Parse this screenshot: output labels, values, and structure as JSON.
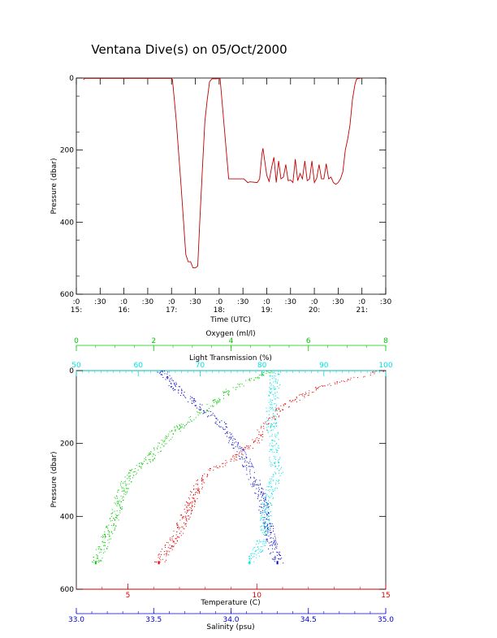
{
  "colors": {
    "axis": "#000000",
    "pressure_trace": "#c00000",
    "temperature": "#e00000",
    "salinity": "#0000cc",
    "oxygen": "#00cc00",
    "light_transmission": "#00e0e0"
  },
  "chart_data": [
    {
      "type": "line",
      "title": "Ventana Dive(s) on 05/Oct/2000",
      "xlabel": "Time (UTC)",
      "ylabel": "Pressure (dbar)",
      "x_ticks": [
        {
          "top": ":0",
          "bottom": "15:"
        },
        {
          "top": ":30",
          "bottom": ""
        },
        {
          "top": ":0",
          "bottom": "16:"
        },
        {
          "top": ":30",
          "bottom": ""
        },
        {
          "top": ":0",
          "bottom": "17:"
        },
        {
          "top": ":30",
          "bottom": ""
        },
        {
          "top": ":0",
          "bottom": "18:"
        },
        {
          "top": ":30",
          "bottom": ""
        },
        {
          "top": ":0",
          "bottom": "19:"
        },
        {
          "top": ":30",
          "bottom": ""
        },
        {
          "top": ":0",
          "bottom": "20:"
        },
        {
          "top": ":30",
          "bottom": ""
        },
        {
          "top": ":0",
          "bottom": "21:"
        },
        {
          "top": ":30",
          "bottom": ""
        }
      ],
      "xlim_hours": [
        15.0,
        21.5
      ],
      "y_ticks": [
        "0",
        "200",
        "400",
        "600"
      ],
      "ylim": [
        600,
        0
      ],
      "series": [
        {
          "x": [
            15.15,
            15.16,
            15.18,
            15.5,
            16.0,
            16.5,
            16.9,
            17.0,
            17.02,
            17.1,
            17.2,
            17.3,
            17.35,
            17.4,
            17.45,
            17.5,
            17.55,
            17.6,
            17.65,
            17.7,
            17.75,
            17.8,
            17.85,
            17.9,
            17.95,
            18.0,
            18.02,
            18.2,
            18.5,
            18.52,
            18.6,
            18.65,
            18.8,
            18.85,
            18.9,
            18.92,
            19.0,
            19.05,
            19.1,
            19.15,
            19.2,
            19.25,
            19.3,
            19.35,
            19.4,
            19.45,
            19.5,
            19.55,
            19.6,
            19.65,
            19.7,
            19.75,
            19.8,
            19.85,
            19.9,
            19.95,
            20.0,
            20.05,
            20.1,
            20.15,
            20.2,
            20.25,
            20.3,
            20.35,
            20.4,
            20.45,
            20.5,
            20.55,
            20.6,
            20.65,
            20.7,
            20.75,
            20.8,
            20.85,
            20.88,
            20.9,
            20.95,
            21.0
          ],
          "y": [
            5,
            3,
            1,
            1,
            1,
            1,
            1,
            1,
            5,
            120,
            300,
            490,
            510,
            510,
            527,
            527,
            522,
            380,
            250,
            120,
            60,
            10,
            2,
            2,
            2,
            1,
            1,
            280,
            280,
            280,
            290,
            288,
            290,
            280,
            210,
            195,
            270,
            287,
            250,
            220,
            290,
            230,
            280,
            275,
            240,
            285,
            283,
            290,
            225,
            285,
            265,
            280,
            230,
            285,
            280,
            230,
            290,
            278,
            240,
            280,
            280,
            238,
            280,
            275,
            290,
            295,
            290,
            280,
            260,
            200,
            170,
            130,
            60,
            20,
            5,
            2,
            1,
            0
          ]
        }
      ]
    },
    {
      "type": "scatter",
      "ylabel": "Pressure (dbar)",
      "y_ticks": [
        "0",
        "200",
        "400",
        "600"
      ],
      "ylim": [
        600,
        0
      ],
      "axes": {
        "oxygen": {
          "label": "Oxygen (ml/l)",
          "ticks": [
            "0",
            "2",
            "4",
            "6",
            "8"
          ],
          "range": [
            0,
            8
          ]
        },
        "light_transmission": {
          "label": "Light Transmission (%)",
          "ticks": [
            "50",
            "60",
            "70",
            "80",
            "90",
            "100"
          ],
          "range": [
            50,
            100
          ]
        },
        "temperature": {
          "label": "Temperature (C)",
          "ticks": [
            "5",
            "10",
            "15"
          ],
          "range": [
            3,
            15
          ]
        },
        "salinity": {
          "label": "Salinity (psu)",
          "ticks": [
            "33.0",
            "33.5",
            "34.0",
            "34.5",
            "35.0"
          ],
          "range": [
            33.0,
            35.0
          ]
        }
      },
      "series": [
        {
          "name": "Temperature",
          "p": [
            0,
            50,
            100,
            150,
            200,
            250,
            280,
            300,
            350,
            400,
            450,
            500,
            527
          ],
          "v": [
            14.8,
            12.2,
            11.0,
            10.3,
            9.9,
            8.9,
            8.0,
            7.8,
            7.5,
            7.2,
            6.9,
            6.4,
            6.2
          ]
        },
        {
          "name": "Salinity",
          "p": [
            0,
            50,
            100,
            150,
            200,
            250,
            280,
            300,
            350,
            400,
            450,
            500,
            527
          ],
          "v": [
            33.55,
            33.65,
            33.8,
            33.95,
            34.02,
            34.1,
            34.12,
            34.15,
            34.2,
            34.22,
            34.25,
            34.28,
            34.3
          ]
        },
        {
          "name": "Oxygen",
          "p": [
            0,
            50,
            100,
            150,
            200,
            250,
            270,
            300,
            350,
            400,
            450,
            500,
            527
          ],
          "v": [
            5.0,
            4.0,
            3.4,
            2.7,
            2.2,
            1.8,
            1.5,
            1.3,
            1.1,
            1.0,
            0.8,
            0.6,
            0.5
          ]
        },
        {
          "name": "Light Transmission",
          "p": [
            0,
            50,
            100,
            150,
            200,
            250,
            280,
            300,
            350,
            400,
            450,
            500,
            527
          ],
          "v": [
            82.0,
            82.0,
            81.5,
            81.5,
            82.0,
            82.0,
            82.5,
            82.0,
            81.0,
            80.5,
            80.5,
            79.0,
            78.0
          ]
        }
      ]
    }
  ]
}
